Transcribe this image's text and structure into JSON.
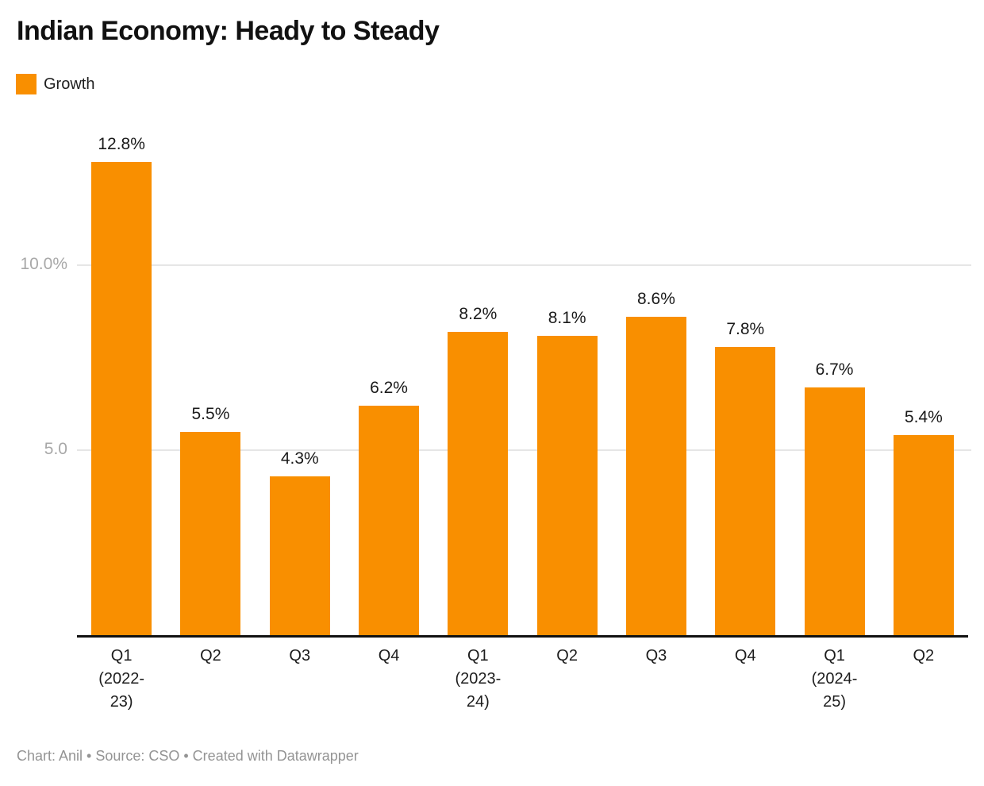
{
  "header": {
    "title": "Indian Economy: Heady to Steady"
  },
  "legend": {
    "items": [
      {
        "label": "Growth",
        "color": "#F98F00"
      }
    ]
  },
  "chart_data": {
    "type": "bar",
    "title": "Indian Economy: Heady to Steady",
    "series_name": "Growth",
    "categories": [
      "Q1\n(2022-\n23)",
      "Q2",
      "Q3",
      "Q4",
      "Q1\n(2023-\n24)",
      "Q2",
      "Q3",
      "Q4",
      "Q1\n(2024-\n25)",
      "Q2"
    ],
    "values": [
      12.8,
      5.5,
      4.3,
      6.2,
      8.2,
      8.1,
      8.6,
      7.8,
      6.7,
      5.4
    ],
    "value_labels": [
      "12.8%",
      "5.5%",
      "4.3%",
      "6.2%",
      "8.2%",
      "8.1%",
      "8.6%",
      "7.8%",
      "6.7%",
      "5.4%"
    ],
    "unit": "%",
    "bar_color": "#F98F00",
    "axis_line_color": "#111111",
    "gridline_color": "#e6e6e6",
    "ylim": [
      0,
      13.6
    ],
    "yticks": [
      {
        "value": 5,
        "label": "5.0"
      },
      {
        "value": 10,
        "label": "10.0%"
      }
    ],
    "grid": "horizontal-only",
    "legend_position": "top-left",
    "xlabel": "",
    "ylabel": ""
  },
  "footer": {
    "text": "Chart: Anil • Source: CSO • Created with Datawrapper"
  }
}
